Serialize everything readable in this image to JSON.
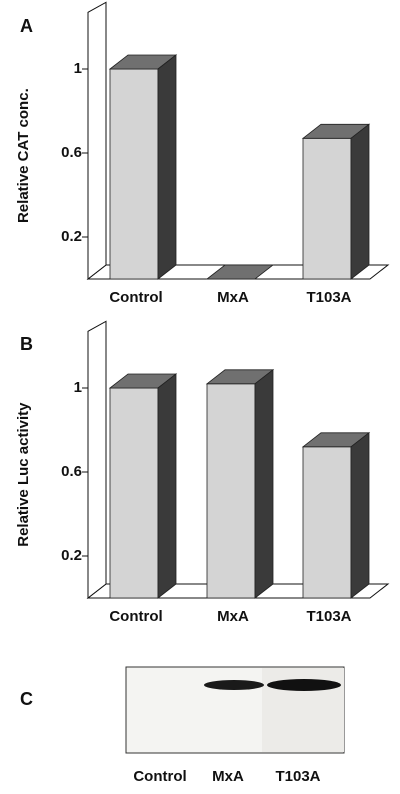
{
  "chart_data": [
    {
      "type": "bar3d",
      "panel": "A",
      "ylabel": "Relative CAT conc.",
      "categories": [
        "Control",
        "MxA",
        "T103A"
      ],
      "values": [
        1.0,
        0,
        0.67
      ],
      "color": "#d4d4d4",
      "ylim": [
        0,
        1.27
      ],
      "yticks": [
        0.2,
        0.6,
        1.0
      ]
    },
    {
      "type": "bar3d",
      "panel": "B",
      "ylabel": "Relative Luc activity",
      "categories": [
        "Control",
        "MxA",
        "T103A"
      ],
      "values": [
        1.0,
        1.02,
        0.72
      ],
      "color": "#d4d4d4",
      "ylim": [
        0,
        1.27
      ],
      "yticks": [
        0.2,
        0.6,
        1.0
      ]
    }
  ],
  "blot": {
    "panel": "C",
    "lanes": [
      "Control",
      "MxA",
      "T103A"
    ]
  }
}
